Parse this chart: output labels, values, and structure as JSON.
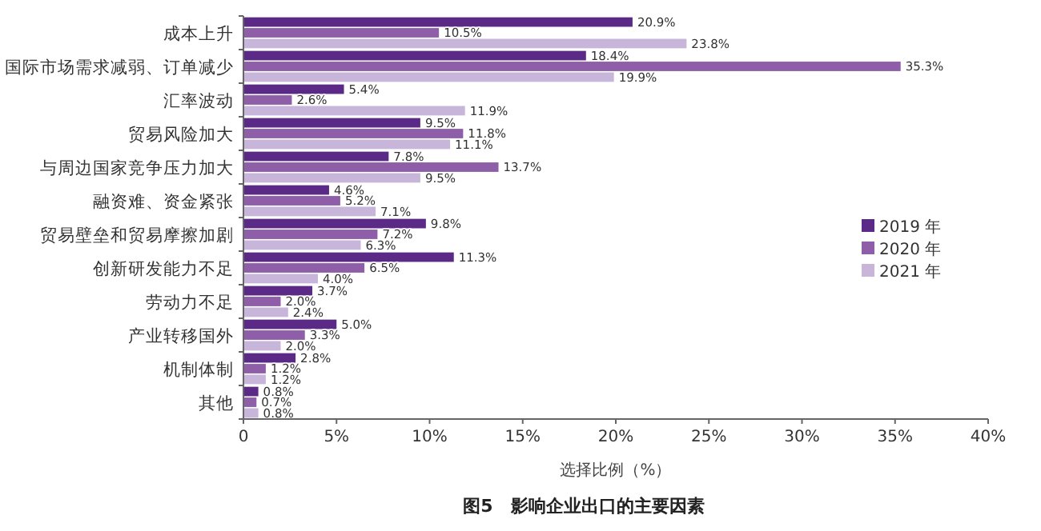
{
  "chart_data": {
    "type": "bar",
    "orientation": "horizontal",
    "title": "图5　影响企业出口的主要因素",
    "xlabel": "选择比例（%）",
    "categories": [
      "成本上升",
      "国际市场需求减弱、订单减少",
      "汇率波动",
      "贸易风险加大",
      "与周边国家竞争压力加大",
      "融资难、资金紧张",
      "贸易壁垒和贸易摩擦加剧",
      "创新研发能力不足",
      "劳动力不足",
      "产业转移国外",
      "机制体制",
      "其他"
    ],
    "series": [
      {
        "name": "2019 年",
        "color": "#5b2a86",
        "values": [
          20.9,
          18.4,
          5.4,
          9.5,
          7.8,
          4.6,
          9.8,
          11.3,
          3.7,
          5.0,
          2.8,
          0.8
        ],
        "value_labels": [
          "20.9%",
          "18.4%",
          "5.4%",
          "9.5%",
          "7.8%",
          "4.6%",
          "9.8%",
          "11.3%",
          "3.7%",
          "5.0%",
          "2.8%",
          "0.8%"
        ]
      },
      {
        "name": "2020 年",
        "color": "#8e5fa8",
        "values": [
          10.5,
          35.3,
          2.6,
          11.8,
          13.7,
          5.2,
          7.2,
          6.5,
          2.0,
          3.3,
          1.2,
          0.7
        ],
        "value_labels": [
          "10.5%",
          "35.3%",
          "2.6%",
          "11.8%",
          "13.7%",
          "5.2%",
          "7.2%",
          "6.5%",
          "2.0%",
          "3.3%",
          "1.2%",
          "0.7%"
        ]
      },
      {
        "name": "2021 年",
        "color": "#c7b5da",
        "values": [
          23.8,
          19.9,
          11.9,
          11.1,
          9.5,
          7.1,
          6.3,
          4.0,
          2.4,
          2.0,
          1.2,
          0.8
        ],
        "value_labels": [
          "23.8%",
          "19.9%",
          "11.9%",
          "11.1%",
          "9.5%",
          "7.1%",
          "6.3%",
          "4.0%",
          "2.4%",
          "2.0%",
          "1.2%",
          "0.8%"
        ]
      }
    ],
    "xlim": [
      0,
      40
    ],
    "xticks": [
      0,
      {
        "value": 5,
        "label": "5%"
      },
      {
        "value": 10,
        "label": "10%"
      },
      {
        "value": 15,
        "label": "15%"
      },
      {
        "value": 20,
        "label": "20%"
      },
      {
        "value": 25,
        "label": "25%"
      },
      {
        "value": 30,
        "label": "30%"
      },
      {
        "value": 35,
        "label": "35%"
      },
      {
        "value": 40,
        "label": "40%"
      }
    ],
    "legend": "right",
    "grid": false
  }
}
